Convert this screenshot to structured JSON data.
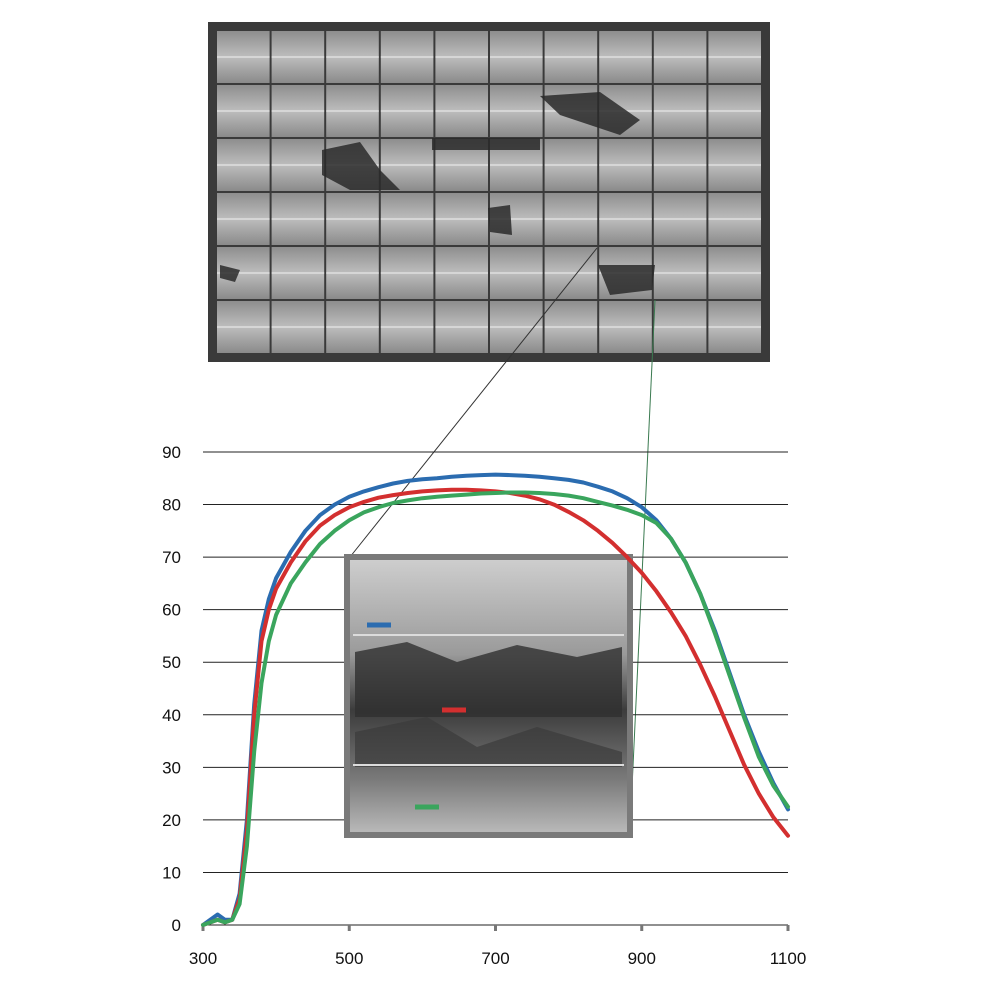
{
  "chart_data": {
    "type": "line",
    "title": "",
    "xlabel": "",
    "ylabel": "",
    "xlim": [
      300,
      1100
    ],
    "ylim": [
      0,
      90
    ],
    "x_ticks": [
      "300",
      "500",
      "700",
      "900",
      "1100"
    ],
    "y_ticks": [
      "0",
      "10",
      "20",
      "30",
      "40",
      "50",
      "60",
      "70",
      "80",
      "90"
    ],
    "grid": true,
    "legend": "none (colored markers inside inset image)",
    "series": [
      {
        "color": "#2b6cb0",
        "x": [
          300,
          310,
          320,
          330,
          340,
          350,
          360,
          370,
          380,
          390,
          400,
          420,
          440,
          460,
          480,
          500,
          520,
          540,
          560,
          580,
          600,
          620,
          640,
          660,
          680,
          700,
          720,
          740,
          760,
          780,
          800,
          820,
          840,
          860,
          880,
          900,
          920,
          940,
          960,
          980,
          1000,
          1020,
          1040,
          1060,
          1080,
          1100
        ],
        "y": [
          0,
          1,
          2,
          1,
          1,
          6,
          20,
          42,
          56,
          62,
          66,
          71,
          75,
          78,
          80,
          81.5,
          82.5,
          83.3,
          84,
          84.5,
          84.8,
          85,
          85.3,
          85.5,
          85.6,
          85.7,
          85.6,
          85.5,
          85.3,
          85,
          84.7,
          84.2,
          83.4,
          82.5,
          81.2,
          79.5,
          77,
          73.5,
          69,
          63,
          56,
          48,
          40,
          33,
          27,
          22
        ]
      },
      {
        "color": "#d32f2f",
        "x": [
          300,
          310,
          320,
          330,
          340,
          350,
          360,
          370,
          380,
          390,
          400,
          420,
          440,
          460,
          480,
          500,
          520,
          540,
          560,
          580,
          600,
          620,
          640,
          660,
          680,
          700,
          720,
          740,
          760,
          780,
          800,
          820,
          840,
          860,
          880,
          900,
          920,
          940,
          960,
          980,
          1000,
          1020,
          1040,
          1060,
          1080,
          1100
        ],
        "y": [
          0,
          0.5,
          1,
          0.5,
          1,
          5,
          18,
          40,
          54,
          60,
          64,
          69,
          73,
          76,
          78,
          79.5,
          80.5,
          81.3,
          81.8,
          82.2,
          82.5,
          82.7,
          82.8,
          82.8,
          82.7,
          82.5,
          82.2,
          81.7,
          81,
          80,
          78.6,
          77,
          75,
          72.7,
          70,
          67,
          63.5,
          59.5,
          55,
          49.5,
          43.5,
          37,
          30.5,
          25,
          20.5,
          17
        ]
      },
      {
        "color": "#3aa55d",
        "x": [
          300,
          310,
          320,
          330,
          340,
          350,
          360,
          370,
          380,
          390,
          400,
          420,
          440,
          460,
          480,
          500,
          520,
          540,
          560,
          580,
          600,
          620,
          640,
          660,
          680,
          700,
          720,
          740,
          760,
          780,
          800,
          820,
          840,
          860,
          880,
          900,
          920,
          940,
          960,
          980,
          1000,
          1020,
          1040,
          1060,
          1080,
          1100
        ],
        "y": [
          0,
          0.5,
          1,
          0.5,
          1,
          4,
          15,
          33,
          46,
          54,
          59,
          65,
          69,
          72.5,
          75,
          77,
          78.5,
          79.5,
          80.3,
          80.8,
          81.2,
          81.5,
          81.7,
          81.9,
          82.1,
          82.2,
          82.3,
          82.3,
          82.2,
          82,
          81.7,
          81.2,
          80.5,
          79.8,
          79,
          78,
          76.5,
          73.5,
          69,
          63,
          55.5,
          47.5,
          39.5,
          32,
          26.5,
          22.5
        ]
      }
    ]
  },
  "images": {
    "panel_photo": "electroluminescence-image-of-cracked-solar-panel",
    "inset_photo": "zoomed-electroluminescence-detail-of-cracked-cell",
    "inset_markers": [
      {
        "color": "#2b6cb0",
        "series_index": 0
      },
      {
        "color": "#d32f2f",
        "series_index": 1
      },
      {
        "color": "#3aa55d",
        "series_index": 2
      }
    ]
  },
  "colors": {
    "grid": "#222222",
    "panel_frame": "#3a3a3a",
    "panel_cell": "#a9a9a9",
    "inset_frame": "#7a7a7a"
  }
}
